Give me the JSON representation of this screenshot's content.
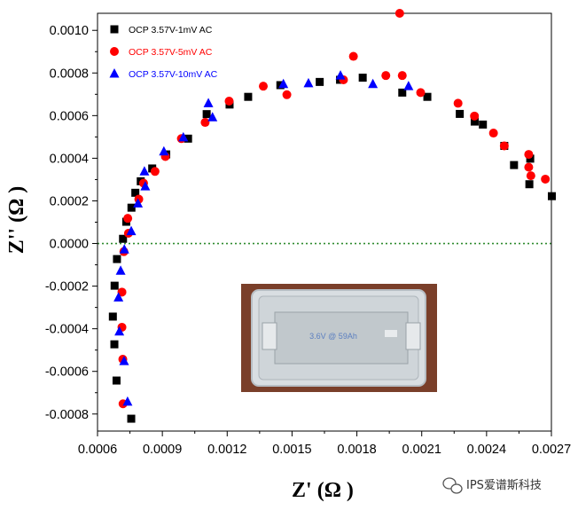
{
  "chart_data": {
    "type": "scatter",
    "title": "",
    "xlabel": "Z' (Ω )",
    "ylabel": "Z'' (Ω )",
    "xlim": [
      0.0006,
      0.0027
    ],
    "ylim": [
      -0.00088,
      0.00108
    ],
    "x_ticks": [
      0.0006,
      0.0009,
      0.0012,
      0.0015,
      0.0018,
      0.0021,
      0.0024,
      0.0027
    ],
    "x_tick_labels": [
      "0.0006",
      "0.0009",
      "0.0012",
      "0.0015",
      "0.0018",
      "0.0021",
      "0.0024",
      "0.0027"
    ],
    "y_ticks": [
      -0.0008,
      -0.0006,
      -0.0004,
      -0.0002,
      0.0,
      0.0002,
      0.0004,
      0.0006,
      0.0008,
      0.001
    ],
    "y_tick_labels": [
      "-0.0008",
      "-0.0006",
      "-0.0004",
      "-0.0002",
      "0.0000",
      "0.0002",
      "0.0004",
      "0.0006",
      "0.0008",
      "0.0010"
    ],
    "zero_line": true,
    "legend_position": "top-left",
    "series": [
      {
        "name": "OCP 3.57V-1mV AC",
        "marker": "square",
        "color": "#000000",
        "points": [
          [
            0.000756,
            -0.000822
          ],
          [
            0.000688,
            -0.000643
          ],
          [
            0.000678,
            -0.000473
          ],
          [
            0.000671,
            -0.000343
          ],
          [
            0.000679,
            -0.000198
          ],
          [
            0.00069,
            -7.3e-05
          ],
          [
            0.000718,
            2.2e-05
          ],
          [
            0.000733,
            0.000102
          ],
          [
            0.000757,
            0.000168
          ],
          [
            0.000775,
            0.000238
          ],
          [
            0.0008,
            0.000292
          ],
          [
            0.000853,
            0.000352
          ],
          [
            0.000918,
            0.000418
          ],
          [
            0.001019,
            0.000492
          ],
          [
            0.001105,
            0.000607
          ],
          [
            0.001211,
            0.000652
          ],
          [
            0.001297,
            0.000688
          ],
          [
            0.001446,
            0.000743
          ],
          [
            0.001628,
            0.000758
          ],
          [
            0.001722,
            0.000768
          ],
          [
            0.001827,
            0.000778
          ],
          [
            0.00201,
            0.000708
          ],
          [
            0.002126,
            0.000688
          ],
          [
            0.002276,
            0.000608
          ],
          [
            0.002345,
            0.000572
          ],
          [
            0.002383,
            0.000558
          ],
          [
            0.002482,
            0.000458
          ],
          [
            0.002527,
            0.000368
          ],
          [
            0.002598,
            0.000278
          ],
          [
            0.002602,
            0.000398
          ],
          [
            0.002702,
            0.000222
          ]
        ]
      },
      {
        "name": "OCP 3.57V-5mV AC",
        "marker": "circle",
        "color": "#ff0000",
        "points": [
          [
            0.000718,
            -0.000752
          ],
          [
            0.000717,
            -0.000543
          ],
          [
            0.000713,
            -0.000393
          ],
          [
            0.000713,
            -0.000228
          ],
          [
            0.000722,
            -3.8e-05
          ],
          [
            0.000743,
            4.8e-05
          ],
          [
            0.00074,
            0.000118
          ],
          [
            0.000791,
            0.000208
          ],
          [
            0.000813,
            0.000283
          ],
          [
            0.000866,
            0.000338
          ],
          [
            0.000914,
            0.000408
          ],
          [
            0.000988,
            0.000492
          ],
          [
            0.001098,
            0.000568
          ],
          [
            0.001209,
            0.000668
          ],
          [
            0.001367,
            0.000738
          ],
          [
            0.001476,
            0.000698
          ],
          [
            0.001738,
            0.000768
          ],
          [
            0.001784,
            0.000878
          ],
          [
            0.001934,
            0.000788
          ],
          [
            0.00201,
            0.000788
          ],
          [
            0.002095,
            0.000708
          ],
          [
            0.002268,
            0.000658
          ],
          [
            0.002344,
            0.000598
          ],
          [
            0.002432,
            0.000518
          ],
          [
            0.002482,
            0.000458
          ],
          [
            0.002595,
            0.000418
          ],
          [
            0.002595,
            0.000358
          ],
          [
            0.002605,
            0.000318
          ],
          [
            0.002672,
            0.000302
          ],
          [
            0.001998,
            0.001108
          ]
        ]
      },
      {
        "name": "OCP 3.57V-10mV AC",
        "marker": "triangle",
        "color": "#0000ff",
        "points": [
          [
            0.000739,
            -0.000742
          ],
          [
            0.000723,
            -0.000552
          ],
          [
            0.000701,
            -0.000413
          ],
          [
            0.000697,
            -0.000253
          ],
          [
            0.000707,
            -0.000128
          ],
          [
            0.000724,
            -2.8e-05
          ],
          [
            0.000756,
            5.8e-05
          ],
          [
            0.000787,
            0.000188
          ],
          [
            0.000821,
            0.000268
          ],
          [
            0.000817,
            0.000338
          ],
          [
            0.000907,
            0.000432
          ],
          [
            0.000997,
            0.000498
          ],
          [
            0.001113,
            0.000658
          ],
          [
            0.001132,
            0.000592
          ],
          [
            0.00146,
            0.000748
          ],
          [
            0.001576,
            0.000752
          ],
          [
            0.001724,
            0.000788
          ],
          [
            0.001874,
            0.000748
          ],
          [
            0.002039,
            0.000738
          ]
        ]
      }
    ]
  },
  "inset": {
    "label": "3.6V @ 59Ah"
  },
  "watermark": {
    "text": "IPS爱谱斯科技"
  }
}
